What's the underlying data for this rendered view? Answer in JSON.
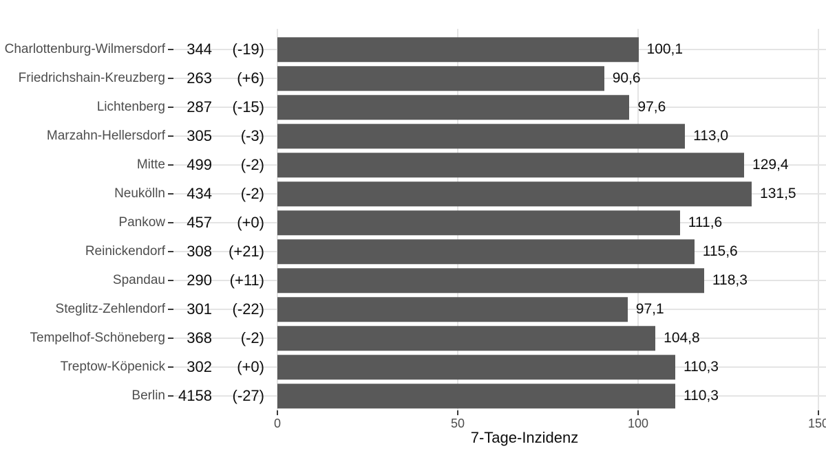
{
  "chart_data": {
    "type": "bar",
    "orientation": "horizontal",
    "title": "",
    "xlabel": "7-Tage-Inzidenz",
    "ylabel": "",
    "xlim": [
      0,
      152
    ],
    "x_ticks": [
      0,
      50,
      100,
      150
    ],
    "x_tick_labels": [
      "0",
      "50",
      "100",
      "150"
    ],
    "grid": "on",
    "bar_color": "#595959",
    "gridline_color": "#e4e4e4",
    "label_color": "#4d4d4d",
    "value_color": "#0d0d0d",
    "categories": [
      "Charlottenburg-Wilmersdorf",
      "Friedrichshain-Kreuzberg",
      "Lichtenberg",
      "Marzahn-Hellersdorf",
      "Mitte",
      "Neukölln",
      "Pankow",
      "Reinickendorf",
      "Spandau",
      "Steglitz-Zehlendorf",
      "Tempelhof-Schöneberg",
      "Treptow-Köpenick",
      "Berlin"
    ],
    "values": [
      100.1,
      90.6,
      97.6,
      113.0,
      129.4,
      131.5,
      111.6,
      115.6,
      118.3,
      97.1,
      104.8,
      110.3,
      110.3
    ],
    "rows": [
      {
        "name": "Charlottenburg-Wilmersdorf",
        "cases": "344",
        "delta": "(-19)",
        "value": 100.1,
        "value_label": "100,1"
      },
      {
        "name": "Friedrichshain-Kreuzberg",
        "cases": "263",
        "delta": "(+6)",
        "value": 90.6,
        "value_label": "90,6"
      },
      {
        "name": "Lichtenberg",
        "cases": "287",
        "delta": "(-15)",
        "value": 97.6,
        "value_label": "97,6"
      },
      {
        "name": "Marzahn-Hellersdorf",
        "cases": "305",
        "delta": "(-3)",
        "value": 113.0,
        "value_label": "113,0"
      },
      {
        "name": "Mitte",
        "cases": "499",
        "delta": "(-2)",
        "value": 129.4,
        "value_label": "129,4"
      },
      {
        "name": "Neukölln",
        "cases": "434",
        "delta": "(-2)",
        "value": 131.5,
        "value_label": "131,5"
      },
      {
        "name": "Pankow",
        "cases": "457",
        "delta": "(+0)",
        "value": 111.6,
        "value_label": "111,6"
      },
      {
        "name": "Reinickendorf",
        "cases": "308",
        "delta": "(+21)",
        "value": 115.6,
        "value_label": "115,6"
      },
      {
        "name": "Spandau",
        "cases": "290",
        "delta": "(+11)",
        "value": 118.3,
        "value_label": "118,3"
      },
      {
        "name": "Steglitz-Zehlendorf",
        "cases": "301",
        "delta": "(-22)",
        "value": 97.1,
        "value_label": "97,1"
      },
      {
        "name": "Tempelhof-Schöneberg",
        "cases": "368",
        "delta": "(-2)",
        "value": 104.8,
        "value_label": "104,8"
      },
      {
        "name": "Treptow-Köpenick",
        "cases": "302",
        "delta": "(+0)",
        "value": 110.3,
        "value_label": "110,3"
      },
      {
        "name": "Berlin",
        "cases": "4158",
        "delta": "(-27)",
        "value": 110.3,
        "value_label": "110,3"
      }
    ]
  }
}
